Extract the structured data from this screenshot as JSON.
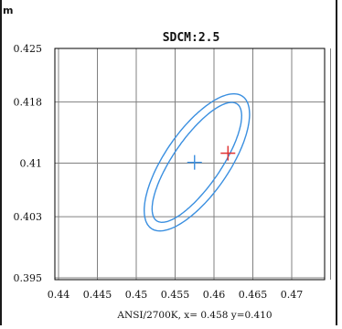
{
  "chart_data": {
    "type": "scatter",
    "title": "SDCM:2.5",
    "xlabel": "ANSI/2700K, x= 0.458 y=0.410",
    "y_axis_unit_fragment": "m",
    "x_ticks": [
      0.44,
      0.445,
      0.45,
      0.455,
      0.46,
      0.465,
      0.47
    ],
    "x_tick_labels": [
      "0.44",
      "0.445",
      "0.45",
      "0.455",
      "0.46",
      "0.465",
      "0.47"
    ],
    "y_ticks": [
      0.395,
      0.403,
      0.41,
      0.418,
      0.425
    ],
    "y_tick_labels": [
      "0.395",
      "0.403",
      "0.41",
      "0.418",
      "0.425"
    ],
    "xlim": [
      0.44,
      0.478
    ],
    "ylim": [
      0.395,
      0.425
    ],
    "grid": true,
    "ellipses": [
      {
        "center": [
          0.4578,
          0.4101
        ],
        "semi_major": 0.01685,
        "semi_minor": 0.00668,
        "angle_deg": 56,
        "color": "#3a8fe0"
      },
      {
        "center": [
          0.4578,
          0.4101
        ],
        "semi_major": 0.01488,
        "semi_minor": 0.00498,
        "angle_deg": 56,
        "color": "#3a8fe0"
      }
    ],
    "markers": [
      {
        "x": 0.4575,
        "y": 0.4101,
        "shape": "plus",
        "color": "#3a8fe0"
      },
      {
        "x": 0.4618,
        "y": 0.4113,
        "shape": "plus",
        "color": "#e03030"
      }
    ],
    "grid_color": "#808080",
    "axis_color": "#000000"
  }
}
